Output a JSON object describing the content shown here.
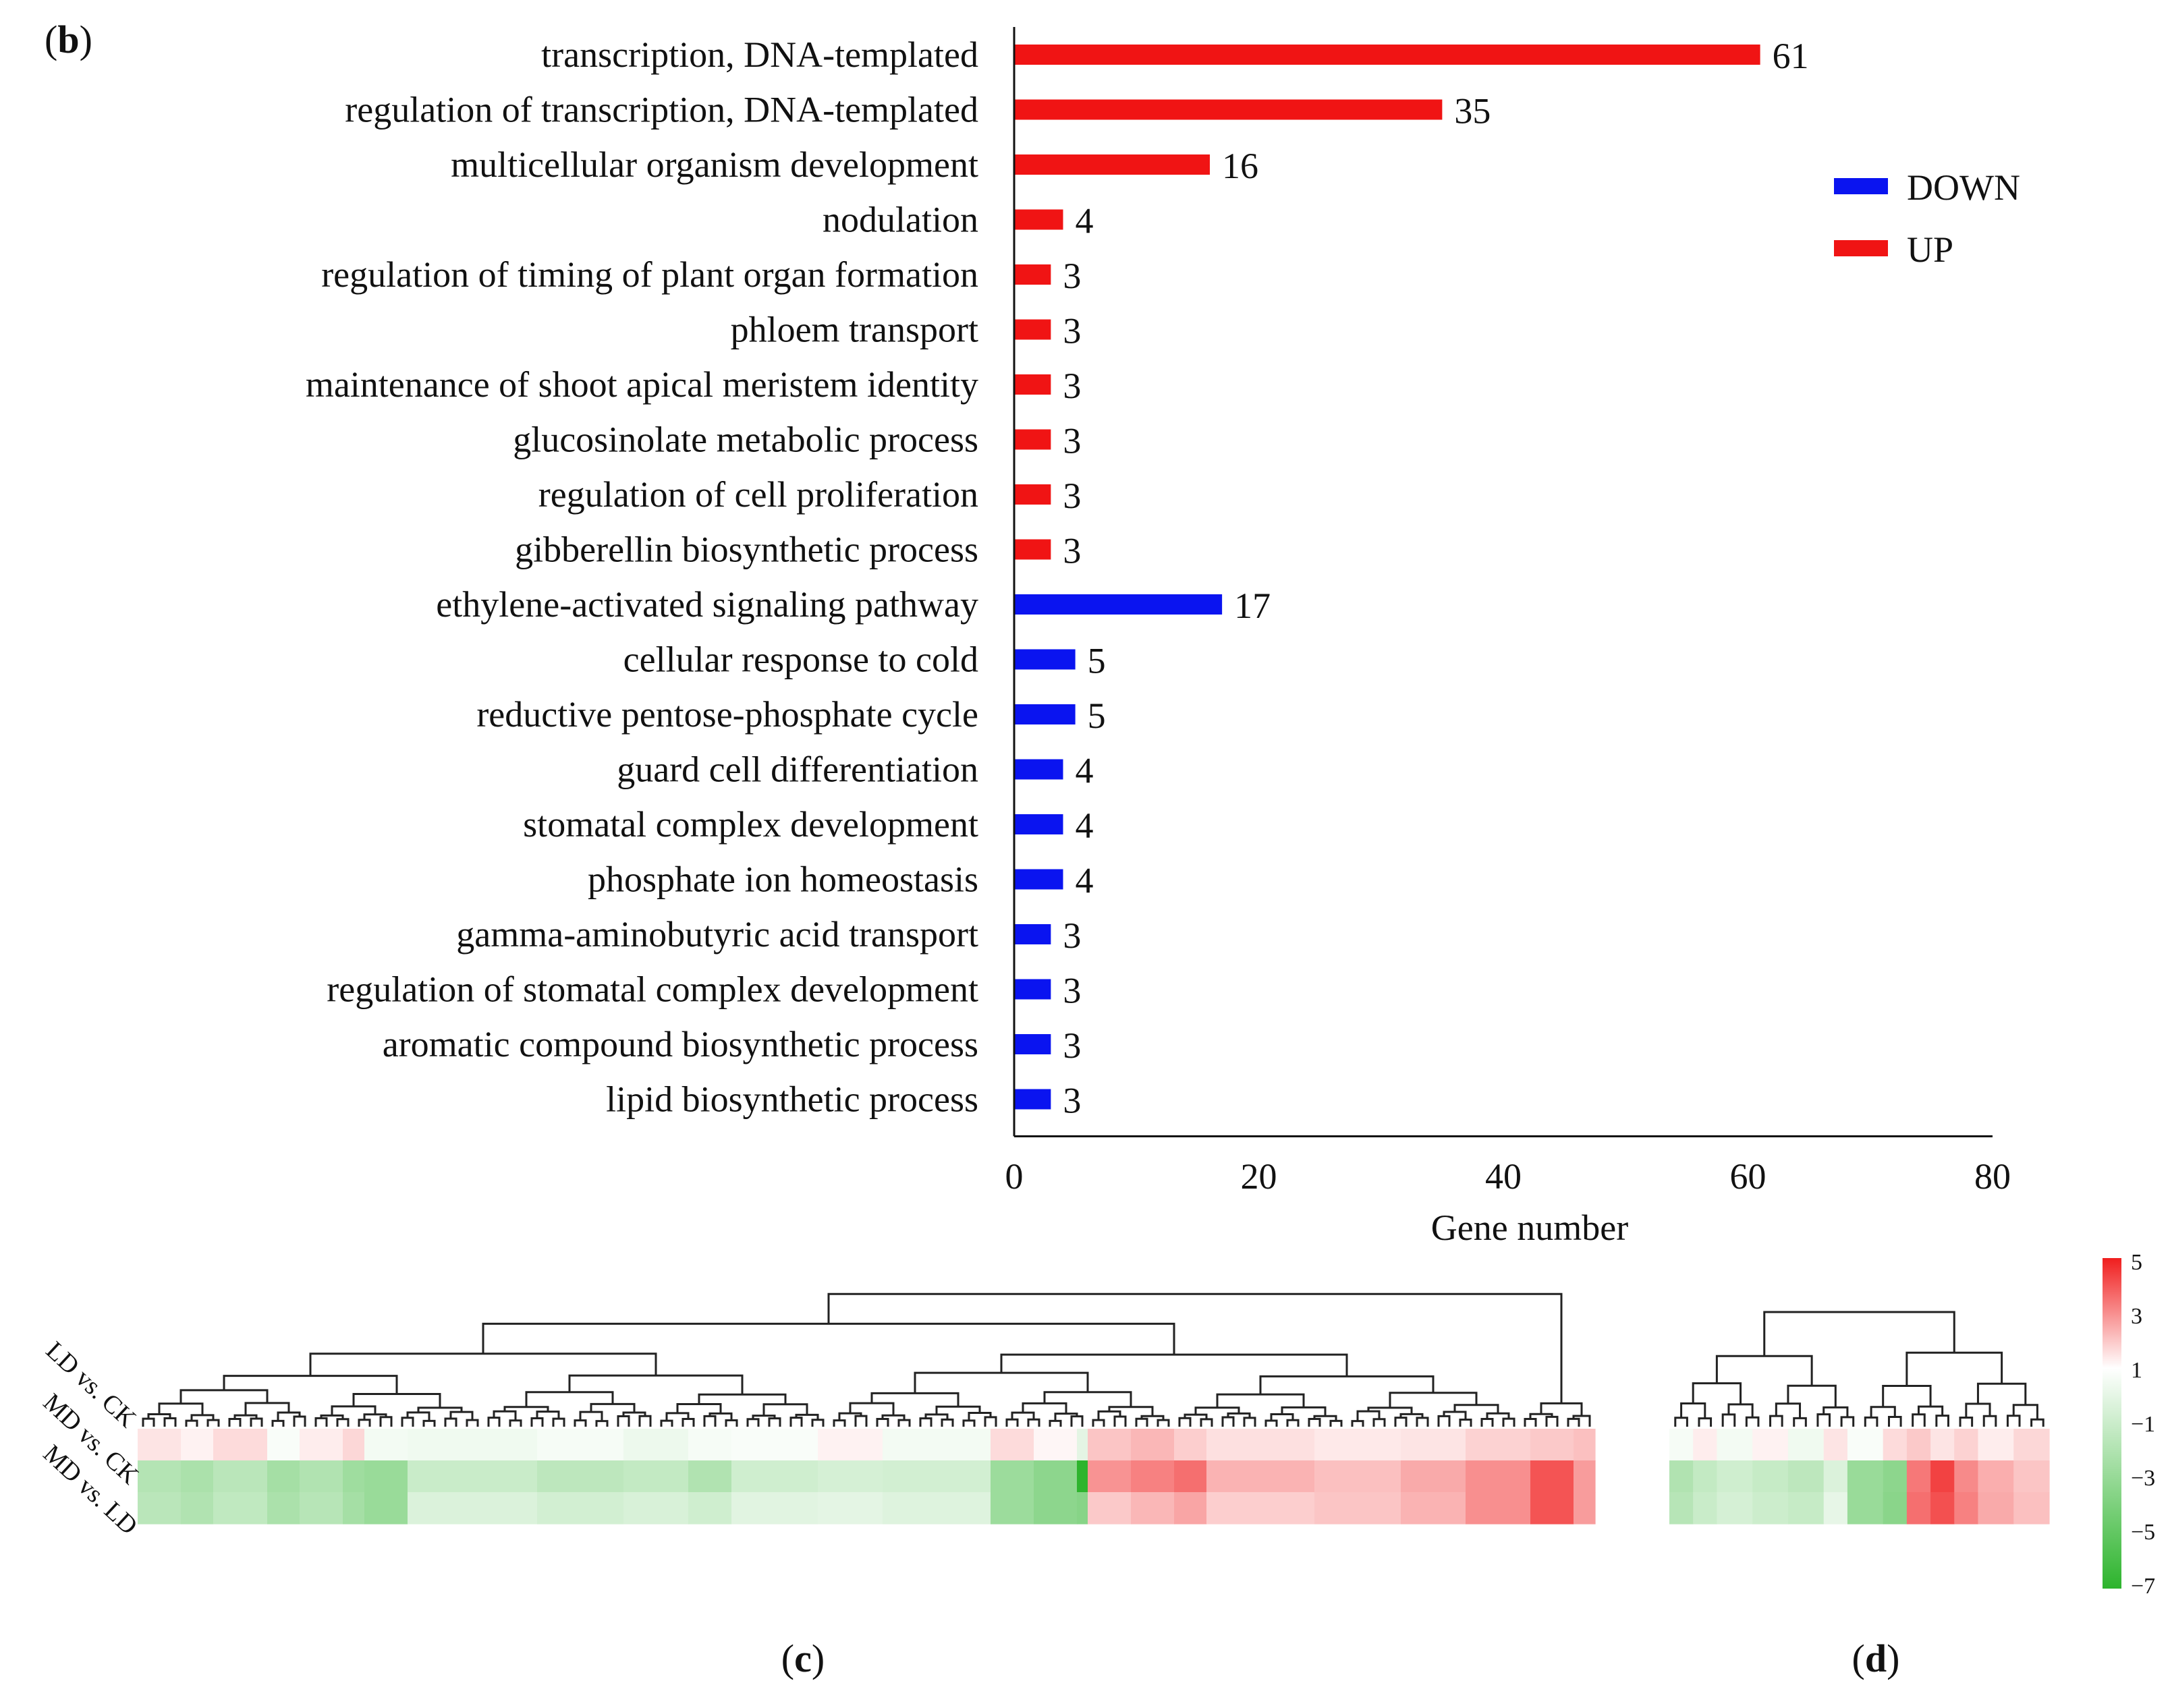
{
  "chart_data": [
    {
      "panel": "b",
      "panel_label": "b",
      "type": "bar",
      "orientation": "horizontal",
      "xlabel": "Gene number",
      "xlim": [
        0,
        80
      ],
      "xticks": [
        "0",
        "20",
        "40",
        "60",
        "80"
      ],
      "legend": [
        {
          "name": "DOWN",
          "color": "#0a14f0"
        },
        {
          "name": "UP",
          "color": "#f01414"
        }
      ],
      "legend_position": "top-right",
      "bars": [
        {
          "label": "transcription, DNA-templated",
          "value": 61,
          "group": "UP"
        },
        {
          "label": "regulation of transcription, DNA-templated",
          "value": 35,
          "group": "UP"
        },
        {
          "label": "multicellular organism development",
          "value": 16,
          "group": "UP"
        },
        {
          "label": "nodulation",
          "value": 4,
          "group": "UP"
        },
        {
          "label": "regulation of timing of plant organ formation",
          "value": 3,
          "group": "UP"
        },
        {
          "label": "phloem transport",
          "value": 3,
          "group": "UP"
        },
        {
          "label": "maintenance of shoot apical meristem identity",
          "value": 3,
          "group": "UP"
        },
        {
          "label": "glucosinolate metabolic process",
          "value": 3,
          "group": "UP"
        },
        {
          "label": "regulation of cell proliferation",
          "value": 3,
          "group": "UP"
        },
        {
          "label": "gibberellin biosynthetic process",
          "value": 3,
          "group": "UP"
        },
        {
          "label": "ethylene-activated signaling pathway",
          "value": 17,
          "group": "DOWN"
        },
        {
          "label": "cellular response to cold",
          "value": 5,
          "group": "DOWN"
        },
        {
          "label": "reductive pentose-phosphate cycle",
          "value": 5,
          "group": "DOWN"
        },
        {
          "label": "guard cell differentiation",
          "value": 4,
          "group": "DOWN"
        },
        {
          "label": "stomatal complex development",
          "value": 4,
          "group": "DOWN"
        },
        {
          "label": "phosphate ion homeostasis",
          "value": 4,
          "group": "DOWN"
        },
        {
          "label": "gamma-aminobutyric acid transport",
          "value": 3,
          "group": "DOWN"
        },
        {
          "label": "regulation of stomatal complex development",
          "value": 3,
          "group": "DOWN"
        },
        {
          "label": "aromatic compound biosynthetic process",
          "value": 3,
          "group": "DOWN"
        },
        {
          "label": "lipid biosynthetic process",
          "value": 3,
          "group": "DOWN"
        }
      ]
    },
    {
      "panel": "c",
      "panel_label": "c",
      "type": "heatmap",
      "rows": [
        "LD vs. CK",
        "MD vs. CK",
        "MD vs. LD"
      ],
      "color_scale": {
        "min": -7,
        "max": 5,
        "low_color": "#2db42d",
        "mid_color": "#ffffff",
        "high_color": "#f01e1e"
      },
      "segments": [
        {
          "columns": 4,
          "values": [
            0.6,
            -2.5,
            -2.3
          ]
        },
        {
          "columns": 3,
          "values": [
            0.3,
            -2.8,
            -2.6
          ]
        },
        {
          "columns": 5,
          "values": [
            0.8,
            -2.3,
            -2.1
          ]
        },
        {
          "columns": 3,
          "values": [
            -0.2,
            -3.0,
            -2.8
          ]
        },
        {
          "columns": 4,
          "values": [
            0.4,
            -2.6,
            -2.4
          ]
        },
        {
          "columns": 2,
          "values": [
            0.9,
            -3.2,
            -3.0
          ]
        },
        {
          "columns": 4,
          "values": [
            -0.4,
            -3.4,
            -3.4
          ]
        },
        {
          "columns": 12,
          "values": [
            -0.5,
            -1.8,
            -1.2
          ]
        },
        {
          "columns": 8,
          "values": [
            -0.3,
            -2.2,
            -1.5
          ]
        },
        {
          "columns": 6,
          "values": [
            -0.6,
            -2.0,
            -1.3
          ]
        },
        {
          "columns": 4,
          "values": [
            -0.3,
            -2.6,
            -1.6
          ]
        },
        {
          "columns": 8,
          "values": [
            -0.2,
            -1.6,
            -1.0
          ]
        },
        {
          "columns": 6,
          "values": [
            0.3,
            -1.4,
            -0.9
          ]
        },
        {
          "columns": 10,
          "values": [
            -0.4,
            -1.5,
            -1.1
          ]
        },
        {
          "columns": 4,
          "values": [
            0.8,
            -3.3,
            -3.3
          ]
        },
        {
          "columns": 4,
          "values": [
            0.2,
            -3.8,
            -3.8
          ]
        },
        {
          "columns": 1,
          "values": [
            -0.9,
            -7.0,
            -4.0
          ]
        },
        {
          "columns": 4,
          "values": [
            1.3,
            2.4,
            1.2
          ]
        },
        {
          "columns": 4,
          "values": [
            1.6,
            2.8,
            1.6
          ]
        },
        {
          "columns": 3,
          "values": [
            1.1,
            3.2,
            2.0
          ]
        },
        {
          "columns": 10,
          "values": [
            0.7,
            1.7,
            1.1
          ]
        },
        {
          "columns": 8,
          "values": [
            0.5,
            1.4,
            1.3
          ]
        },
        {
          "columns": 6,
          "values": [
            0.6,
            1.9,
            1.7
          ]
        },
        {
          "columns": 6,
          "values": [
            1.0,
            2.5,
            2.5
          ]
        },
        {
          "columns": 4,
          "values": [
            1.2,
            3.8,
            3.8
          ]
        },
        {
          "columns": 2,
          "values": [
            1.4,
            2.2,
            2.2
          ]
        }
      ]
    },
    {
      "panel": "d",
      "panel_label": "d",
      "type": "heatmap",
      "rows": [
        "LD vs. CK",
        "MD vs. CK",
        "MD vs. LD"
      ],
      "color_scale": {
        "min": -7,
        "max": 5,
        "low_color": "#2db42d",
        "mid_color": "#ffffff",
        "high_color": "#f01e1e"
      },
      "colorbar_ticks": [
        "5",
        "3",
        "1",
        "−1",
        "−3",
        "−5",
        "−7"
      ],
      "segments": [
        {
          "columns": 2,
          "values": [
            -0.3,
            -2.6,
            -2.4
          ]
        },
        {
          "columns": 2,
          "values": [
            0.4,
            -2.0,
            -1.8
          ]
        },
        {
          "columns": 3,
          "values": [
            -0.4,
            -1.6,
            -1.4
          ]
        },
        {
          "columns": 3,
          "values": [
            0.3,
            -1.9,
            -1.7
          ]
        },
        {
          "columns": 3,
          "values": [
            -0.5,
            -2.2,
            -1.9
          ]
        },
        {
          "columns": 2,
          "values": [
            0.6,
            -1.2,
            -0.8
          ]
        },
        {
          "columns": 3,
          "values": [
            -0.2,
            -3.4,
            -3.4
          ]
        },
        {
          "columns": 2,
          "values": [
            0.8,
            -3.8,
            -3.9
          ]
        },
        {
          "columns": 2,
          "values": [
            1.2,
            3.0,
            3.2
          ]
        },
        {
          "columns": 2,
          "values": [
            0.6,
            4.2,
            3.9
          ]
        },
        {
          "columns": 2,
          "values": [
            1.0,
            2.6,
            2.8
          ]
        },
        {
          "columns": 3,
          "values": [
            0.4,
            1.8,
            1.9
          ]
        },
        {
          "columns": 3,
          "values": [
            0.9,
            1.3,
            1.4
          ]
        }
      ]
    }
  ]
}
